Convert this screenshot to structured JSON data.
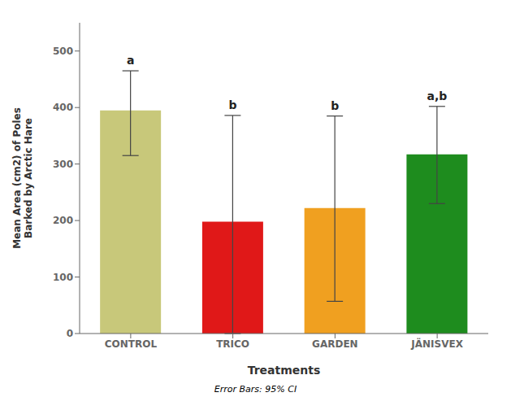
{
  "chart_data": {
    "type": "bar",
    "categories": [
      "CONTROL",
      "TRICO",
      "GARDEN",
      "JÄNISVEX"
    ],
    "values": [
      395,
      198,
      222,
      317
    ],
    "errors_upper": [
      70,
      188,
      163,
      85
    ],
    "errors_lower": [
      80,
      198,
      165,
      87
    ],
    "colors": [
      "#c8c87a",
      "#e01818",
      "#f0a020",
      "#1e8c1e"
    ],
    "annotations": [
      "a",
      "b",
      "b",
      "a,b"
    ],
    "xlabel": "Treatments",
    "ylabel": "Mean Area (cm2) of Poles\nBarked by Arctic Hare",
    "footnote": "Error Bars: 95% CI",
    "ylim": [
      0,
      550
    ],
    "yticks": [
      0,
      100,
      200,
      300,
      400,
      500
    ],
    "grid": false
  }
}
